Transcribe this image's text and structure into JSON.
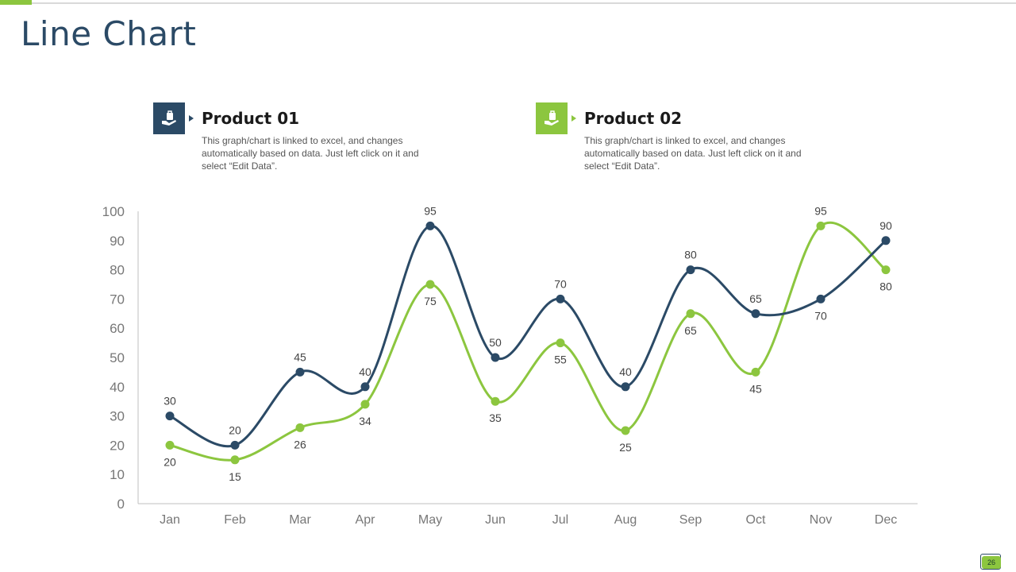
{
  "page": {
    "title": "Line Chart",
    "page_number": "26"
  },
  "colors": {
    "product01": "#2b4a66",
    "product02": "#8cc63f",
    "axis": "#bfbfbf",
    "tick_text": "#777777",
    "label_text": "#444444"
  },
  "legend": [
    {
      "name": "Product 01",
      "icon": "hand-bag-icon",
      "description": "This graph/chart is linked to excel, and changes automatically based on data. Just left click on it and select “Edit Data”."
    },
    {
      "name": "Product 02",
      "icon": "hand-bag-icon",
      "description": "This graph/chart is linked to excel, and changes automatically based on data. Just left click on it and select “Edit Data”."
    }
  ],
  "chart_data": {
    "type": "line",
    "title": "",
    "xlabel": "",
    "ylabel": "",
    "categories": [
      "Jan",
      "Feb",
      "Mar",
      "Apr",
      "May",
      "Jun",
      "Jul",
      "Aug",
      "Sep",
      "Oct",
      "Nov",
      "Dec"
    ],
    "ylim": [
      0,
      100
    ],
    "yticks": [
      0,
      10,
      20,
      30,
      40,
      50,
      60,
      70,
      80,
      90,
      100
    ],
    "smooth": true,
    "grid": false,
    "series": [
      {
        "name": "Product 01",
        "values": [
          30,
          20,
          45,
          40,
          95,
          50,
          70,
          40,
          80,
          65,
          70,
          90
        ]
      },
      {
        "name": "Product 02",
        "values": [
          20,
          15,
          26,
          34,
          75,
          35,
          55,
          25,
          65,
          45,
          95,
          80
        ]
      }
    ]
  }
}
